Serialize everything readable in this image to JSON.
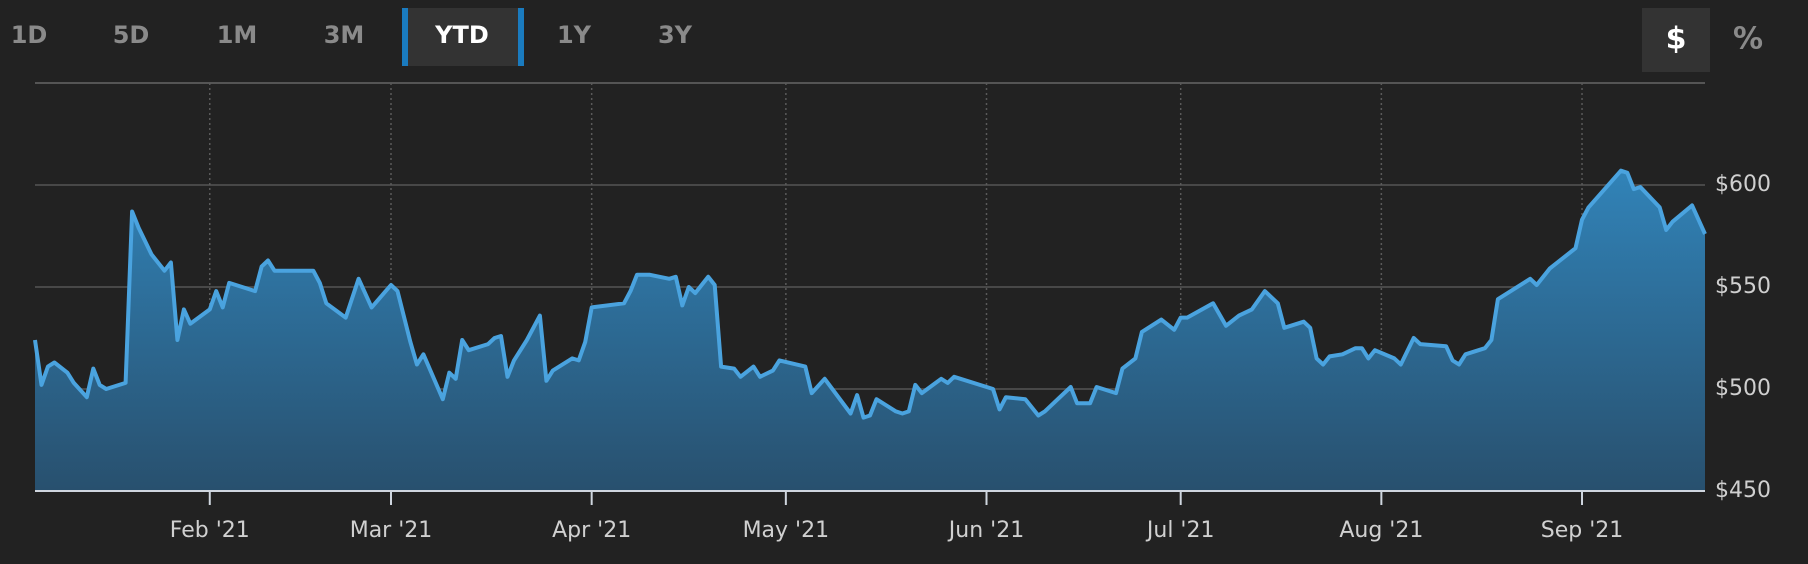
{
  "range_buttons": [
    "1D",
    "5D",
    "1M",
    "3M",
    "YTD",
    "1Y",
    "3Y"
  ],
  "unit_buttons": [
    "$",
    "%"
  ],
  "chart_data": {
    "type": "area",
    "color": "#4aa3df",
    "x": [
      5,
      6,
      7,
      8,
      10,
      11,
      13,
      14,
      15,
      16,
      19,
      20,
      21,
      23,
      25,
      26,
      27,
      28,
      29,
      32,
      33,
      34,
      35,
      39,
      40,
      41,
      42,
      48,
      49,
      50,
      53,
      55,
      57,
      60,
      61,
      63,
      64,
      65,
      68,
      69,
      70,
      71,
      72,
      75,
      76,
      77,
      78,
      79,
      81,
      83,
      84,
      85,
      88,
      89,
      90,
      91,
      96,
      97,
      98,
      100,
      103,
      104,
      105,
      106,
      107,
      109,
      110,
      111,
      113,
      114,
      116,
      117,
      119,
      120,
      124,
      125,
      127,
      131,
      132,
      133,
      134,
      135,
      138,
      139,
      140,
      141,
      142,
      145,
      146,
      147,
      153,
      154,
      155,
      158,
      160,
      161,
      165,
      166,
      168,
      169,
      172,
      173,
      175,
      176,
      179,
      181,
      182,
      183,
      187,
      189,
      191,
      193,
      195,
      197,
      198,
      201,
      202,
      203,
      204,
      205,
      207,
      209,
      210,
      211,
      212,
      215,
      216,
      218,
      219,
      223,
      224,
      225,
      226,
      229,
      230,
      231,
      233,
      236,
      237,
      239,
      243,
      244,
      245,
      250,
      251,
      252,
      253,
      256,
      257,
      258,
      261,
      263
    ],
    "values": [
      524,
      502,
      511,
      513,
      508,
      503,
      496,
      510,
      502,
      500,
      503,
      587,
      579,
      566,
      558,
      562,
      524,
      539,
      532,
      539,
      548,
      540,
      552,
      548,
      560,
      563,
      558,
      558,
      552,
      542,
      535,
      554,
      540,
      551,
      548,
      523,
      512,
      517,
      495,
      508,
      505,
      524,
      519,
      522,
      525,
      526,
      506,
      514,
      524,
      536,
      504,
      509,
      515,
      514,
      523,
      540,
      542,
      548,
      556,
      556,
      554,
      555,
      541,
      550,
      547,
      555,
      551,
      511,
      510,
      506,
      511,
      506,
      509,
      514,
      511,
      498,
      505,
      488,
      497,
      486,
      487,
      495,
      489,
      488,
      489,
      502,
      498,
      505,
      503,
      506,
      500,
      490,
      496,
      495,
      487,
      489,
      501,
      493,
      493,
      501,
      498,
      510,
      515,
      528,
      534,
      529,
      535,
      535,
      542,
      531,
      536,
      539,
      548,
      542,
      530,
      533,
      530,
      515,
      512,
      516,
      517,
      520,
      520,
      515,
      519,
      515,
      512,
      525,
      522,
      521,
      514,
      512,
      517,
      520,
      524,
      544,
      548,
      554,
      551,
      559,
      569,
      583,
      589,
      607,
      606,
      598,
      599,
      589,
      578,
      582,
      590,
      576
    ],
    "xlim": [
      5,
      263
    ],
    "xticks": [
      {
        "value": 32,
        "label": "Feb '21"
      },
      {
        "value": 60,
        "label": "Mar '21"
      },
      {
        "value": 91,
        "label": "Apr '21"
      },
      {
        "value": 121,
        "label": "May '21"
      },
      {
        "value": 152,
        "label": "Jun '21"
      },
      {
        "value": 182,
        "label": "Jul '21"
      },
      {
        "value": 213,
        "label": "Aug '21"
      },
      {
        "value": 244,
        "label": "Sep '21"
      }
    ],
    "ylim": [
      450,
      650
    ],
    "yticks": [
      {
        "value": 450,
        "label": "$450"
      },
      {
        "value": 500,
        "label": "$500"
      },
      {
        "value": 550,
        "label": "$550"
      },
      {
        "value": 600,
        "label": "$600"
      }
    ],
    "grid": true
  }
}
